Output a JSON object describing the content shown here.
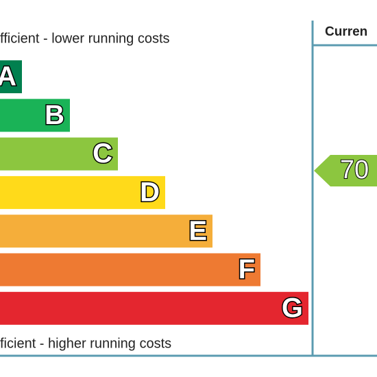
{
  "header": {
    "top_text": "fficient - lower running costs",
    "bottom_text": "ficient - higher running costs",
    "column_title": "Curren"
  },
  "bands": [
    {
      "letter": "A",
      "color": "#00804f"
    },
    {
      "letter": "B",
      "color": "#1ab357"
    },
    {
      "letter": "C",
      "color": "#8cc63f"
    },
    {
      "letter": "D",
      "color": "#ffda1a"
    },
    {
      "letter": "E",
      "color": "#f5ae3a"
    },
    {
      "letter": "F",
      "color": "#ee7a32"
    },
    {
      "letter": "G",
      "color": "#e4262f"
    }
  ],
  "current": {
    "rating": "70",
    "color": "#8cc63f"
  }
}
